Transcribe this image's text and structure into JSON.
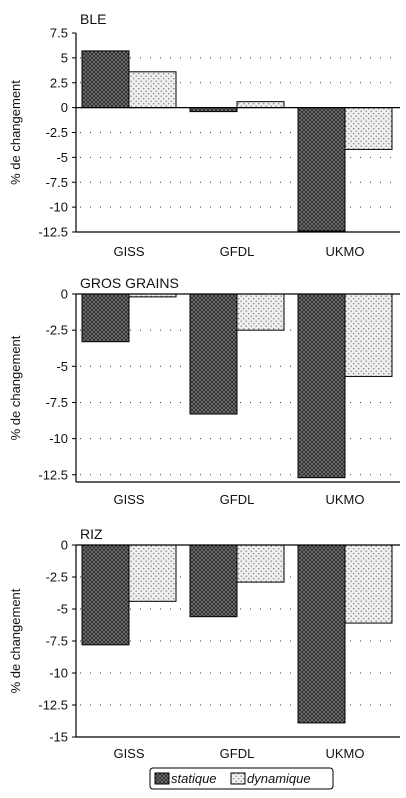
{
  "chart_data": {
    "type": "bar",
    "ylabel": "% de changement",
    "categories": [
      "GISS",
      "GFDL",
      "UKMO"
    ],
    "legend": {
      "position": "bottom",
      "entries": [
        "statique",
        "dynamique"
      ]
    },
    "series_colors": [
      "#2e2e2e",
      "#efefef"
    ],
    "grid": true,
    "panels": [
      {
        "title": "BLE",
        "ylim": [
          -12.5,
          7.5
        ],
        "ytick_labels": [
          "7.5",
          "5",
          "2.5",
          "0",
          "-2.5",
          "-5",
          "-7.5",
          "-10",
          "-12.5"
        ],
        "series": [
          {
            "values": [
              5.7,
              -0.4,
              -12.4
            ]
          },
          {
            "values": [
              3.6,
              0.6,
              -4.2
            ]
          }
        ]
      },
      {
        "title": "GROS GRAINS",
        "ylim": [
          -13,
          0
        ],
        "ytick_labels": [
          "0",
          "-2.5",
          "-5",
          "-7.5",
          "-10",
          "-12.5"
        ],
        "series": [
          {
            "values": [
              -3.3,
              -8.3,
              -12.7
            ]
          },
          {
            "values": [
              -0.2,
              -2.5,
              -5.7
            ]
          }
        ]
      },
      {
        "title": "RIZ",
        "ylim": [
          -15,
          0
        ],
        "ytick_labels": [
          "0",
          "-2.5",
          "-5",
          "-7.5",
          "-10",
          "-12.5",
          "-15"
        ],
        "series": [
          {
            "values": [
              -7.8,
              -5.6,
              -13.9
            ]
          },
          {
            "values": [
              -4.4,
              -2.9,
              -6.1
            ]
          }
        ]
      }
    ]
  }
}
